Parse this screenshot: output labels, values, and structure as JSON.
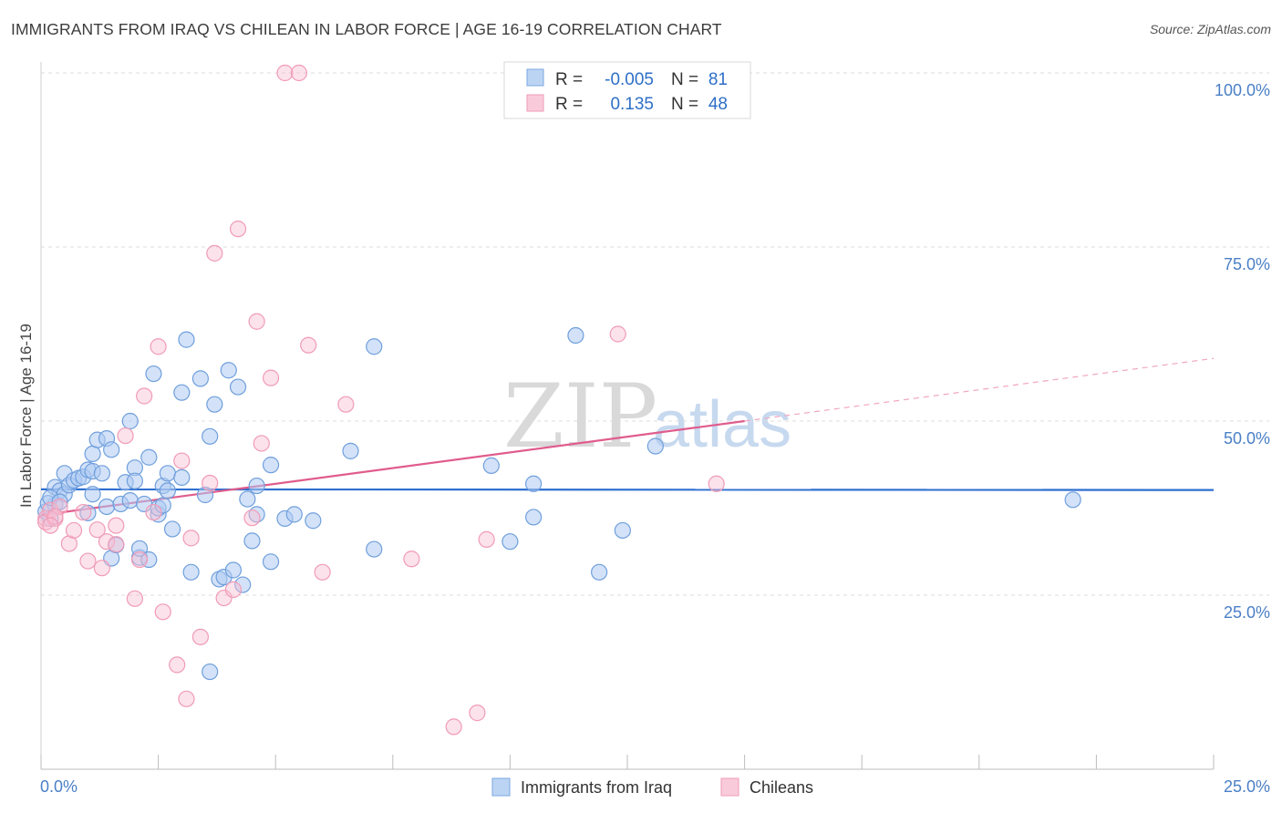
{
  "title": "IMMIGRANTS FROM IRAQ VS CHILEAN IN LABOR FORCE | AGE 16-19 CORRELATION CHART",
  "source": "Source: ZipAtlas.com",
  "watermark": {
    "zip": "ZIP",
    "atlas": "atlas"
  },
  "legend": {
    "r_label": "R =",
    "n_label": "N =",
    "rows": [
      {
        "r": "-0.005",
        "n": "81"
      },
      {
        "r": "0.135",
        "n": "48"
      }
    ]
  },
  "bottom_legend": [
    "Immigrants from Iraq",
    "Chileans"
  ],
  "chart_data": {
    "type": "scatter",
    "title": "IMMIGRANTS FROM IRAQ VS CHILEAN IN LABOR FORCE | AGE 16-19 CORRELATION CHART",
    "xlabel": "",
    "ylabel": "In Labor Force | Age 16-19",
    "xlim": [
      0,
      25
    ],
    "ylim": [
      0,
      100
    ],
    "x_tick_labels": [
      "0.0%",
      "25.0%"
    ],
    "y_tick_values": [
      25,
      50,
      75,
      100
    ],
    "y_tick_labels": [
      "25.0%",
      "50.0%",
      "75.0%",
      "100.0%"
    ],
    "colors": {
      "iraq": "#7aa7e0",
      "chileans": "#f09bb7",
      "iraq_line": "#2e6fd0",
      "chileans_line": "#e05c8c"
    },
    "series": [
      {
        "name": "Immigrants from Iraq",
        "trend": {
          "x": [
            0,
            25
          ],
          "y": [
            40.2,
            40.1
          ]
        },
        "points": [
          [
            0.1,
            37.0
          ],
          [
            0.2,
            36.0
          ],
          [
            0.3,
            38.0
          ],
          [
            0.3,
            40.5
          ],
          [
            0.4,
            40.0
          ],
          [
            0.5,
            39.5
          ],
          [
            0.5,
            42.5
          ],
          [
            0.6,
            40.8
          ],
          [
            0.7,
            41.5
          ],
          [
            0.8,
            41.8
          ],
          [
            0.9,
            42.0
          ],
          [
            1.0,
            36.8
          ],
          [
            1.0,
            43.0
          ],
          [
            1.1,
            39.5
          ],
          [
            1.1,
            42.8
          ],
          [
            1.1,
            45.3
          ],
          [
            1.2,
            47.3
          ],
          [
            1.3,
            42.5
          ],
          [
            1.4,
            47.5
          ],
          [
            1.4,
            37.7
          ],
          [
            1.5,
            45.9
          ],
          [
            1.5,
            30.3
          ],
          [
            1.6,
            32.2
          ],
          [
            1.7,
            38.1
          ],
          [
            1.8,
            41.2
          ],
          [
            1.9,
            38.6
          ],
          [
            1.9,
            50.0
          ],
          [
            2.0,
            43.3
          ],
          [
            2.0,
            41.4
          ],
          [
            2.1,
            30.4
          ],
          [
            2.1,
            31.7
          ],
          [
            2.2,
            38.1
          ],
          [
            2.3,
            30.1
          ],
          [
            2.3,
            44.8
          ],
          [
            2.4,
            56.8
          ],
          [
            2.5,
            36.6
          ],
          [
            2.5,
            37.5
          ],
          [
            2.6,
            37.9
          ],
          [
            2.6,
            40.7
          ],
          [
            2.7,
            40.0
          ],
          [
            2.7,
            42.5
          ],
          [
            2.8,
            34.5
          ],
          [
            3.0,
            41.9
          ],
          [
            3.0,
            54.1
          ],
          [
            3.1,
            61.7
          ],
          [
            3.2,
            28.3
          ],
          [
            3.4,
            56.1
          ],
          [
            3.5,
            39.4
          ],
          [
            3.6,
            47.8
          ],
          [
            3.6,
            14.0
          ],
          [
            3.7,
            52.4
          ],
          [
            3.8,
            27.3
          ],
          [
            3.9,
            27.6
          ],
          [
            4.0,
            57.3
          ],
          [
            4.1,
            28.6
          ],
          [
            4.2,
            54.9
          ],
          [
            4.3,
            26.5
          ],
          [
            4.4,
            38.8
          ],
          [
            4.5,
            32.8
          ],
          [
            4.6,
            36.6
          ],
          [
            4.6,
            40.7
          ],
          [
            4.9,
            29.8
          ],
          [
            4.9,
            43.7
          ],
          [
            5.2,
            36.0
          ],
          [
            5.4,
            36.6
          ],
          [
            5.8,
            35.7
          ],
          [
            6.6,
            45.7
          ],
          [
            7.1,
            60.7
          ],
          [
            7.1,
            31.6
          ],
          [
            9.6,
            43.6
          ],
          [
            10.0,
            32.7
          ],
          [
            10.5,
            41.0
          ],
          [
            10.5,
            36.2
          ],
          [
            11.4,
            62.3
          ],
          [
            11.9,
            28.3
          ],
          [
            12.4,
            34.3
          ],
          [
            13.1,
            46.4
          ],
          [
            22.0,
            38.7
          ],
          [
            0.15,
            38.2
          ],
          [
            0.2,
            39.0
          ],
          [
            0.4,
            38.4
          ]
        ]
      },
      {
        "name": "Chileans",
        "trend": {
          "x": [
            0,
            15
          ],
          "y": [
            36.5,
            50.0
          ]
        },
        "trend_extension": {
          "x": [
            15,
            25
          ],
          "y": [
            50.0,
            59.0
          ]
        },
        "points": [
          [
            0.1,
            36.0
          ],
          [
            0.1,
            35.5
          ],
          [
            0.2,
            37.2
          ],
          [
            0.3,
            36.0
          ],
          [
            0.4,
            37.7
          ],
          [
            0.6,
            32.4
          ],
          [
            0.7,
            34.3
          ],
          [
            0.9,
            36.9
          ],
          [
            1.0,
            29.9
          ],
          [
            1.2,
            34.4
          ],
          [
            1.3,
            28.9
          ],
          [
            1.4,
            32.7
          ],
          [
            1.6,
            32.3
          ],
          [
            1.6,
            35.0
          ],
          [
            1.8,
            47.9
          ],
          [
            2.0,
            24.5
          ],
          [
            2.1,
            30.1
          ],
          [
            2.2,
            53.6
          ],
          [
            2.4,
            36.9
          ],
          [
            2.5,
            60.7
          ],
          [
            2.6,
            22.6
          ],
          [
            2.9,
            15.0
          ],
          [
            3.0,
            44.3
          ],
          [
            3.1,
            10.1
          ],
          [
            3.2,
            33.2
          ],
          [
            3.4,
            19.0
          ],
          [
            3.6,
            41.1
          ],
          [
            3.7,
            74.1
          ],
          [
            3.9,
            24.6
          ],
          [
            4.1,
            25.8
          ],
          [
            4.2,
            77.6
          ],
          [
            4.5,
            36.1
          ],
          [
            4.6,
            64.3
          ],
          [
            4.7,
            46.8
          ],
          [
            4.9,
            56.2
          ],
          [
            5.2,
            100.0
          ],
          [
            5.5,
            100.0
          ],
          [
            5.7,
            60.9
          ],
          [
            6.0,
            28.3
          ],
          [
            6.5,
            52.4
          ],
          [
            7.9,
            30.2
          ],
          [
            8.8,
            6.1
          ],
          [
            9.3,
            8.1
          ],
          [
            9.5,
            33.0
          ],
          [
            12.3,
            62.5
          ],
          [
            14.4,
            41.0
          ],
          [
            0.3,
            36.3
          ],
          [
            0.2,
            35.0
          ]
        ]
      }
    ]
  }
}
